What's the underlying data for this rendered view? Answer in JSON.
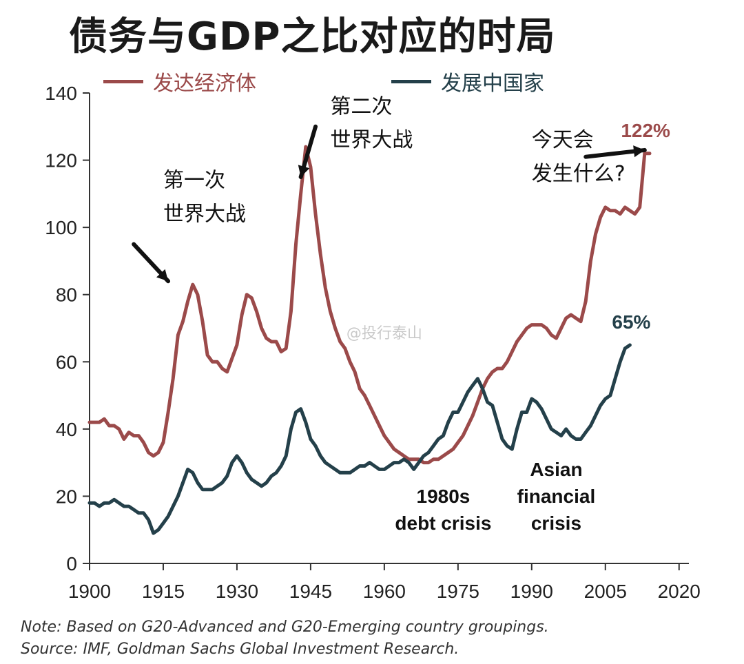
{
  "title": "债务与GDP之比对应的时局",
  "chart_data": {
    "type": "line",
    "title": "债务与GDP之比对应的时局",
    "xlim": [
      1900,
      2022
    ],
    "ylim": [
      0,
      140
    ],
    "x_ticks": [
      1900,
      1915,
      1930,
      1945,
      1960,
      1975,
      1990,
      2005,
      2020
    ],
    "y_ticks": [
      0,
      20,
      40,
      60,
      80,
      100,
      120,
      140
    ],
    "series": [
      {
        "name": "发达经济体",
        "color": "#9b4a4a",
        "points": [
          [
            1900,
            42
          ],
          [
            1902,
            42
          ],
          [
            1903,
            43
          ],
          [
            1904,
            41
          ],
          [
            1905,
            41
          ],
          [
            1906,
            40
          ],
          [
            1907,
            37
          ],
          [
            1908,
            39
          ],
          [
            1909,
            38
          ],
          [
            1910,
            38
          ],
          [
            1911,
            36
          ],
          [
            1912,
            33
          ],
          [
            1913,
            32
          ],
          [
            1914,
            33
          ],
          [
            1915,
            36
          ],
          [
            1916,
            45
          ],
          [
            1917,
            55
          ],
          [
            1918,
            68
          ],
          [
            1919,
            72
          ],
          [
            1920,
            78
          ],
          [
            1921,
            83
          ],
          [
            1922,
            80
          ],
          [
            1923,
            72
          ],
          [
            1924,
            62
          ],
          [
            1925,
            60
          ],
          [
            1926,
            60
          ],
          [
            1927,
            58
          ],
          [
            1928,
            57
          ],
          [
            1929,
            61
          ],
          [
            1930,
            65
          ],
          [
            1931,
            74
          ],
          [
            1932,
            80
          ],
          [
            1933,
            79
          ],
          [
            1934,
            75
          ],
          [
            1935,
            70
          ],
          [
            1936,
            67
          ],
          [
            1937,
            66
          ],
          [
            1938,
            66
          ],
          [
            1939,
            63
          ],
          [
            1940,
            64
          ],
          [
            1941,
            75
          ],
          [
            1942,
            95
          ],
          [
            1943,
            110
          ],
          [
            1944,
            124
          ],
          [
            1945,
            118
          ],
          [
            1946,
            104
          ],
          [
            1947,
            92
          ],
          [
            1948,
            82
          ],
          [
            1949,
            75
          ],
          [
            1950,
            70
          ],
          [
            1951,
            66
          ],
          [
            1952,
            64
          ],
          [
            1953,
            60
          ],
          [
            1954,
            57
          ],
          [
            1955,
            52
          ],
          [
            1956,
            50
          ],
          [
            1957,
            47
          ],
          [
            1958,
            44
          ],
          [
            1959,
            41
          ],
          [
            1960,
            38
          ],
          [
            1961,
            36
          ],
          [
            1962,
            34
          ],
          [
            1963,
            33
          ],
          [
            1964,
            32
          ],
          [
            1965,
            31
          ],
          [
            1966,
            31
          ],
          [
            1967,
            31
          ],
          [
            1968,
            30
          ],
          [
            1969,
            30
          ],
          [
            1970,
            31
          ],
          [
            1971,
            31
          ],
          [
            1972,
            32
          ],
          [
            1973,
            33
          ],
          [
            1974,
            34
          ],
          [
            1975,
            36
          ],
          [
            1976,
            38
          ],
          [
            1977,
            41
          ],
          [
            1978,
            44
          ],
          [
            1979,
            48
          ],
          [
            1980,
            52
          ],
          [
            1981,
            55
          ],
          [
            1982,
            57
          ],
          [
            1983,
            58
          ],
          [
            1984,
            58
          ],
          [
            1985,
            60
          ],
          [
            1986,
            63
          ],
          [
            1987,
            66
          ],
          [
            1988,
            68
          ],
          [
            1989,
            70
          ],
          [
            1990,
            71
          ],
          [
            1991,
            71
          ],
          [
            1992,
            71
          ],
          [
            1993,
            70
          ],
          [
            1994,
            68
          ],
          [
            1995,
            67
          ],
          [
            1996,
            70
          ],
          [
            1997,
            73
          ],
          [
            1998,
            74
          ],
          [
            1999,
            73
          ],
          [
            2000,
            72
          ],
          [
            2001,
            78
          ],
          [
            2002,
            90
          ],
          [
            2003,
            98
          ],
          [
            2004,
            103
          ],
          [
            2005,
            106
          ],
          [
            2006,
            105
          ],
          [
            2007,
            105
          ],
          [
            2008,
            104
          ],
          [
            2009,
            106
          ],
          [
            2010,
            105
          ],
          [
            2011,
            104
          ],
          [
            2012,
            106
          ],
          [
            2013,
            122
          ],
          [
            2014,
            122
          ]
        ]
      },
      {
        "name": "发展中国家",
        "color": "#24404a",
        "points": [
          [
            1900,
            18
          ],
          [
            1901,
            18
          ],
          [
            1902,
            17
          ],
          [
            1903,
            18
          ],
          [
            1904,
            18
          ],
          [
            1905,
            19
          ],
          [
            1906,
            18
          ],
          [
            1907,
            17
          ],
          [
            1908,
            17
          ],
          [
            1909,
            16
          ],
          [
            1910,
            15
          ],
          [
            1911,
            15
          ],
          [
            1912,
            13
          ],
          [
            1913,
            9
          ],
          [
            1914,
            10
          ],
          [
            1915,
            12
          ],
          [
            1916,
            14
          ],
          [
            1917,
            17
          ],
          [
            1918,
            20
          ],
          [
            1919,
            24
          ],
          [
            1920,
            28
          ],
          [
            1921,
            27
          ],
          [
            1922,
            24
          ],
          [
            1923,
            22
          ],
          [
            1924,
            22
          ],
          [
            1925,
            22
          ],
          [
            1926,
            23
          ],
          [
            1927,
            24
          ],
          [
            1928,
            26
          ],
          [
            1929,
            30
          ],
          [
            1930,
            32
          ],
          [
            1931,
            30
          ],
          [
            1932,
            27
          ],
          [
            1933,
            25
          ],
          [
            1934,
            24
          ],
          [
            1935,
            23
          ],
          [
            1936,
            24
          ],
          [
            1937,
            26
          ],
          [
            1938,
            27
          ],
          [
            1939,
            29
          ],
          [
            1940,
            32
          ],
          [
            1941,
            40
          ],
          [
            1942,
            45
          ],
          [
            1943,
            46
          ],
          [
            1944,
            42
          ],
          [
            1945,
            37
          ],
          [
            1946,
            35
          ],
          [
            1947,
            32
          ],
          [
            1948,
            30
          ],
          [
            1949,
            29
          ],
          [
            1950,
            28
          ],
          [
            1951,
            27
          ],
          [
            1952,
            27
          ],
          [
            1953,
            27
          ],
          [
            1954,
            28
          ],
          [
            1955,
            29
          ],
          [
            1956,
            29
          ],
          [
            1957,
            30
          ],
          [
            1958,
            29
          ],
          [
            1959,
            28
          ],
          [
            1960,
            28
          ],
          [
            1961,
            29
          ],
          [
            1962,
            30
          ],
          [
            1963,
            30
          ],
          [
            1964,
            31
          ],
          [
            1965,
            30
          ],
          [
            1966,
            28
          ],
          [
            1967,
            30
          ],
          [
            1968,
            32
          ],
          [
            1969,
            33
          ],
          [
            1970,
            35
          ],
          [
            1971,
            37
          ],
          [
            1972,
            38
          ],
          [
            1973,
            42
          ],
          [
            1974,
            45
          ],
          [
            1975,
            45
          ],
          [
            1976,
            48
          ],
          [
            1977,
            51
          ],
          [
            1978,
            53
          ],
          [
            1979,
            55
          ],
          [
            1980,
            52
          ],
          [
            1981,
            48
          ],
          [
            1982,
            47
          ],
          [
            1983,
            42
          ],
          [
            1984,
            37
          ],
          [
            1985,
            35
          ],
          [
            1986,
            34
          ],
          [
            1987,
            40
          ],
          [
            1988,
            45
          ],
          [
            1989,
            45
          ],
          [
            1990,
            49
          ],
          [
            1991,
            48
          ],
          [
            1992,
            46
          ],
          [
            1993,
            43
          ],
          [
            1994,
            40
          ],
          [
            1995,
            39
          ],
          [
            1996,
            38
          ],
          [
            1997,
            40
          ],
          [
            1998,
            38
          ],
          [
            1999,
            37
          ],
          [
            2000,
            37
          ],
          [
            2001,
            39
          ],
          [
            2002,
            41
          ],
          [
            2003,
            44
          ],
          [
            2004,
            47
          ],
          [
            2005,
            49
          ],
          [
            2006,
            50
          ],
          [
            2007,
            55
          ],
          [
            2008,
            60
          ],
          [
            2009,
            64
          ],
          [
            2010,
            65
          ]
        ]
      }
    ],
    "end_labels": [
      {
        "series": "发达经济体",
        "text": "122%",
        "x": 2014,
        "y": 122
      },
      {
        "series": "发展中国家",
        "text": "65%",
        "x": 2010,
        "y": 65
      }
    ],
    "annotations": [
      {
        "id": "ww1-line1",
        "text": "第一次",
        "x": 1915,
        "y": 112
      },
      {
        "id": "ww1-line2",
        "text": "世界大战",
        "x": 1915,
        "y": 102
      },
      {
        "id": "ww2-line1",
        "text": "第二次",
        "x": 1949,
        "y": 134
      },
      {
        "id": "ww2-line2",
        "text": "世界大战",
        "x": 1949,
        "y": 124
      },
      {
        "id": "today-line1",
        "text": "今天会",
        "x": 1990,
        "y": 124
      },
      {
        "id": "today-line2",
        "text": "发生什么?",
        "x": 1990,
        "y": 114
      },
      {
        "id": "debt1980-line1",
        "text": "1980s",
        "x": 1972,
        "y": 18
      },
      {
        "id": "debt1980-line2",
        "text": "debt crisis",
        "x": 1972,
        "y": 10
      },
      {
        "id": "asian-line1",
        "text": "Asian",
        "x": 1995,
        "y": 26
      },
      {
        "id": "asian-line2",
        "text": "financial",
        "x": 1995,
        "y": 18
      },
      {
        "id": "asian-line3",
        "text": "crisis",
        "x": 1995,
        "y": 10
      }
    ],
    "arrows": [
      {
        "id": "ww1-arrow",
        "from": [
          1909,
          95
        ],
        "to": [
          1916,
          84
        ]
      },
      {
        "id": "ww2-arrow",
        "from": [
          1946,
          130
        ],
        "to": [
          1943,
          115
        ]
      },
      {
        "id": "today-arrow",
        "from": [
          2001,
          121
        ],
        "to": [
          2013,
          123
        ]
      }
    ],
    "watermark": "@投行泰山"
  },
  "legend": {
    "advanced": "发达经济体",
    "developing": "发展中国家",
    "advanced_color": "#9b4a4a",
    "developing_color": "#24404a"
  },
  "notes": {
    "note": "Note: Based on G20-Advanced and G20-Emerging country groupings.",
    "source": "Source: IMF, Goldman Sachs Global Investment Research."
  }
}
